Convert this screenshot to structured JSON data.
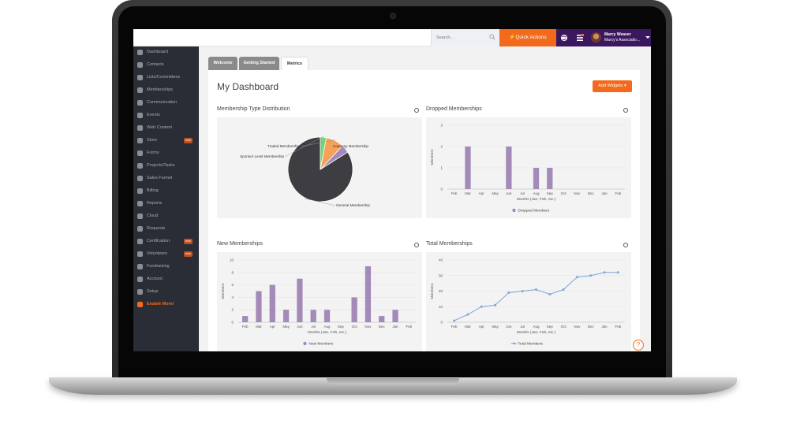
{
  "colors": {
    "brand_purple": "#3b1760",
    "accent_orange": "#f26b1d",
    "sidebar_bg": "#2a2c36",
    "bar_fill": "#a38ab8",
    "line_stroke": "#7fa6d6"
  },
  "topbar": {
    "search_placeholder": "Search...",
    "search_icon": "magnifier-icon",
    "quick_actions_label": "Quick Actions",
    "user_name": "Marcy Weaver",
    "user_org": "Marcy's Associatio..."
  },
  "sidebar": {
    "items": [
      {
        "label": "Dashboard",
        "icon": "home-icon",
        "active": true
      },
      {
        "label": "Contacts",
        "icon": "person-icon"
      },
      {
        "label": "Lists/Committees",
        "icon": "group-icon"
      },
      {
        "label": "Memberships",
        "icon": "heart-icon"
      },
      {
        "label": "Communication",
        "icon": "envelope-icon"
      },
      {
        "label": "Events",
        "icon": "calendar-icon"
      },
      {
        "label": "Web Content",
        "icon": "monitor-icon"
      },
      {
        "label": "Store",
        "icon": "cart-icon",
        "badge": "beta"
      },
      {
        "label": "Forms",
        "icon": "list-icon"
      },
      {
        "label": "Projects/Tasks",
        "icon": "tasks-icon"
      },
      {
        "label": "Sales Funnel",
        "icon": "send-icon"
      },
      {
        "label": "Billing",
        "icon": "card-icon"
      },
      {
        "label": "Reports",
        "icon": "chart-icon"
      },
      {
        "label": "Cloud",
        "icon": "cloud-icon"
      },
      {
        "label": "Requests",
        "icon": "globe-icon"
      },
      {
        "label": "Certification",
        "icon": "badge-icon",
        "badge": "beta"
      },
      {
        "label": "Volunteers",
        "icon": "hand-icon",
        "badge": "beta"
      },
      {
        "label": "Fundraising",
        "icon": "ticket-icon"
      },
      {
        "label": "Account",
        "icon": "account-icon"
      },
      {
        "label": "Setup",
        "icon": "gear-icon"
      },
      {
        "label": "Enable More!",
        "icon": "thumbs-up-icon",
        "highlight": true
      }
    ]
  },
  "tabs": [
    {
      "label": "Welcome"
    },
    {
      "label": "Getting Started"
    },
    {
      "label": "Metrics",
      "active": true
    }
  ],
  "main": {
    "title": "My Dashboard",
    "add_widgets_label": "Add Widgets ▾"
  },
  "chart_data": [
    {
      "type": "pie",
      "title": "Membership Type Distribution",
      "slices": [
        {
          "label": "General Membership",
          "value": 84,
          "color": "#3d3d42"
        },
        {
          "label": "Sponsor Level Membership",
          "value": 3,
          "color": "#74d477"
        },
        {
          "label": "Traded Membership",
          "value": 9,
          "color": "#f5a157"
        },
        {
          "label": "Courtesy Membership",
          "value": 4,
          "color": "#a38ab8"
        }
      ]
    },
    {
      "type": "bar",
      "title": "Dropped Memberships",
      "xlabel": "Months (Jan, Feb, etc.)",
      "ylabel": "Members",
      "ylim": [
        0,
        3
      ],
      "yticks": [
        "0",
        "1",
        "2",
        "3"
      ],
      "categories": [
        "Feb",
        "Mar",
        "Apr",
        "May",
        "Jun",
        "Jul",
        "Aug",
        "Sep",
        "Oct",
        "Nov",
        "Dec",
        "Jan",
        "Feb"
      ],
      "series": [
        {
          "name": "Dropped Members",
          "values": [
            0,
            2,
            0,
            0,
            2,
            0,
            1,
            1,
            0,
            0,
            0,
            0,
            0
          ]
        }
      ]
    },
    {
      "type": "bar",
      "title": "New Memberships",
      "xlabel": "Months (Jan, Feb, etc.)",
      "ylabel": "Members",
      "ylim": [
        0,
        10
      ],
      "yticks": [
        "0",
        "2",
        "4",
        "6",
        "8",
        "10"
      ],
      "categories": [
        "Feb",
        "Mar",
        "Apr",
        "May",
        "Jun",
        "Jul",
        "Aug",
        "Sep",
        "Oct",
        "Nov",
        "Dec",
        "Jan",
        "Feb"
      ],
      "series": [
        {
          "name": "New Members",
          "values": [
            1,
            5,
            6,
            2,
            7,
            2,
            2,
            0,
            4,
            9,
            1,
            2,
            0
          ]
        }
      ]
    },
    {
      "type": "line",
      "title": "Total Memberships",
      "xlabel": "Months (Jan, Feb, etc.)",
      "ylabel": "Members",
      "ylim": [
        0,
        40
      ],
      "yticks": [
        "0",
        "10",
        "20",
        "30",
        "40"
      ],
      "categories": [
        "Feb",
        "Mar",
        "Apr",
        "May",
        "Jun",
        "Jul",
        "Aug",
        "Sep",
        "Oct",
        "Nov",
        "Dec",
        "Jan",
        "Feb"
      ],
      "series": [
        {
          "name": "Total Members",
          "values": [
            1,
            5,
            10,
            11,
            19,
            20,
            21,
            18,
            21,
            29,
            30,
            32,
            32
          ]
        }
      ]
    }
  ]
}
